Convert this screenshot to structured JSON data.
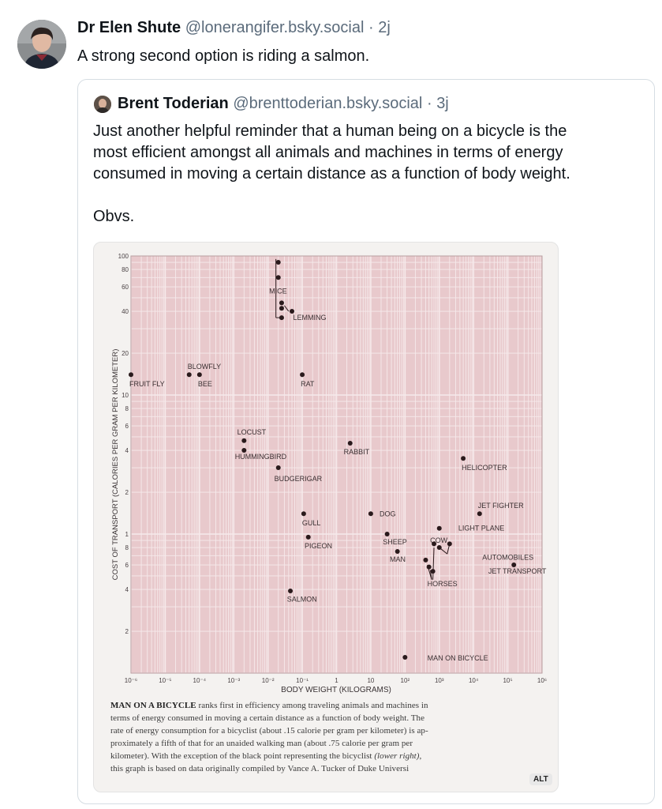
{
  "post": {
    "author_name": "Dr Elen Shute",
    "author_handle": "@lonerangifer.bsky.social",
    "separator": "·",
    "timestamp": "2j",
    "text": "A strong second option is riding a salmon."
  },
  "quote": {
    "author_name": "Brent Toderian",
    "author_handle": "@brenttoderian.bsky.social",
    "separator": "·",
    "timestamp": "3j",
    "text_line1": "Just another helpful reminder that a human being on a bicycle is the",
    "text_line2": "most efficient amongst all animals and machines in terms of energy",
    "text_line3": "consumed in moving a certain distance as a function of body weight.",
    "text_line4": "Obvs."
  },
  "figure": {
    "alt_badge": "ALT",
    "caption": {
      "lead": "MAN ON A BICYCLE",
      "line1": " ranks first in efficiency among traveling animals and machines in",
      "line2": "terms of energy consumed in moving a certain distance as a function of body weight. The",
      "line3": "rate of energy consumption for a bicyclist (about .15 calorie per gram per kilometer) is ap-",
      "line4": "proximately a fifth of that for an unaided walking man (about .75 calorie per gram per",
      "line5a": "kilometer). With the exception of the black point representing the bicyclist ",
      "line5b": "(lower right)",
      "line5c": ",",
      "line6": "this graph is based on data originally compiled by Vance A. Tucker of Duke Universi"
    }
  },
  "chart_data": {
    "type": "scatter",
    "xlabel": "BODY WEIGHT (KILOGRAMS)",
    "ylabel": "COST OF TRANSPORT (CALORIES PER GRAM PER KILOMETER)",
    "xscale": "log",
    "yscale": "log",
    "xlim": [
      1e-06,
      1000000
    ],
    "ylim": [
      0.1,
      100
    ],
    "x_tick_labels": [
      "10⁻⁶",
      "10⁻⁵",
      "10⁻⁴",
      "10⁻³",
      "10⁻²",
      "10⁻¹",
      "1",
      "10",
      "10²",
      "10³",
      "10⁴",
      "10⁵",
      "10⁶"
    ],
    "y_tick_labels": [
      {
        "v": 100,
        "t": "100"
      },
      {
        "v": 80,
        "t": "80"
      },
      {
        "v": 60,
        "t": "60"
      },
      {
        "v": 40,
        "t": "40"
      },
      {
        "v": 20,
        "t": "20"
      },
      {
        "v": 10,
        "t": "10"
      },
      {
        "v": 8,
        "t": "8"
      },
      {
        "v": 6,
        "t": "6"
      },
      {
        "v": 4,
        "t": "4"
      },
      {
        "v": 2,
        "t": "2"
      },
      {
        "v": 1,
        "t": "1"
      },
      {
        "v": 0.8,
        "t": "8"
      },
      {
        "v": 0.6,
        "t": "6"
      },
      {
        "v": 0.4,
        "t": "4"
      },
      {
        "v": 0.2,
        "t": "2"
      }
    ],
    "grid": true,
    "background": "#e8c9cc",
    "grid_color": "#f6eaeb",
    "point_color": "#2a1a1c",
    "points": [
      {
        "x": 1e-06,
        "y": 14
      },
      {
        "x": 5e-05,
        "y": 14
      },
      {
        "x": 0.0001,
        "y": 14
      },
      {
        "x": 0.02,
        "y": 90
      },
      {
        "x": 0.02,
        "y": 70
      },
      {
        "x": 0.025,
        "y": 46
      },
      {
        "x": 0.025,
        "y": 42
      },
      {
        "x": 0.05,
        "y": 40
      },
      {
        "x": 0.025,
        "y": 36
      },
      {
        "x": 0.1,
        "y": 14
      },
      {
        "x": 0.002,
        "y": 4.7
      },
      {
        "x": 0.002,
        "y": 4
      },
      {
        "x": 0.02,
        "y": 3
      },
      {
        "x": 2.5,
        "y": 4.5
      },
      {
        "x": 0.11,
        "y": 1.4
      },
      {
        "x": 0.15,
        "y": 0.95
      },
      {
        "x": 0.045,
        "y": 0.39
      },
      {
        "x": 10,
        "y": 1.4
      },
      {
        "x": 30,
        "y": 1
      },
      {
        "x": 60,
        "y": 0.75
      },
      {
        "x": 100,
        "y": 0.13
      },
      {
        "x": 400,
        "y": 0.65
      },
      {
        "x": 500,
        "y": 0.58
      },
      {
        "x": 650,
        "y": 0.54
      },
      {
        "x": 700,
        "y": 0.85
      },
      {
        "x": 1000,
        "y": 1.1
      },
      {
        "x": 1000,
        "y": 0.8
      },
      {
        "x": 2000,
        "y": 0.85
      },
      {
        "x": 5000,
        "y": 3.5
      },
      {
        "x": 15000,
        "y": 1.4
      },
      {
        "x": 150000,
        "y": 0.6
      }
    ],
    "labels": [
      {
        "text": "FRUIT FLY",
        "x": 1e-06,
        "y": 12
      },
      {
        "text": "BLOWFLY",
        "x": 5e-05,
        "y": 16
      },
      {
        "text": "BEE",
        "x": 0.0001,
        "y": 12
      },
      {
        "text": "MICE",
        "x": 0.012,
        "y": 56
      },
      {
        "text": "LEMMING",
        "x": 0.06,
        "y": 36
      },
      {
        "text": "RAT",
        "x": 0.1,
        "y": 12
      },
      {
        "text": "LOCUST",
        "x": 0.0014,
        "y": 5.4
      },
      {
        "text": "HUMMINGBIRD",
        "x": 0.0012,
        "y": 3.6
      },
      {
        "text": "BUDGERIGAR",
        "x": 0.017,
        "y": 2.5
      },
      {
        "text": "RABBIT",
        "x": 1.8,
        "y": 3.9
      },
      {
        "text": "HELICOPTER",
        "x": 5000,
        "y": 3.0
      },
      {
        "text": "GULL",
        "x": 0.11,
        "y": 1.2
      },
      {
        "text": "PIGEON",
        "x": 0.13,
        "y": 0.82
      },
      {
        "text": "SALMON",
        "x": 0.04,
        "y": 0.34
      },
      {
        "text": "DOG",
        "x": 20,
        "y": 1.4
      },
      {
        "text": "SHEEP",
        "x": 25,
        "y": 0.88
      },
      {
        "text": "MAN",
        "x": 40,
        "y": 0.66
      },
      {
        "text": "COW",
        "x": 600,
        "y": 0.9
      },
      {
        "text": "HORSES",
        "x": 500,
        "y": 0.44
      },
      {
        "text": "JET FIGHTER",
        "x": 15000,
        "y": 1.6
      },
      {
        "text": "LIGHT PLANE",
        "x": 4000,
        "y": 1.1
      },
      {
        "text": "AUTOMOBILES",
        "x": 20000,
        "y": 0.68
      },
      {
        "text": "JET TRANSPORT",
        "x": 30000,
        "y": 0.54
      },
      {
        "text": "MAN ON BICYCLE",
        "x": 500,
        "y": 0.128
      }
    ]
  }
}
